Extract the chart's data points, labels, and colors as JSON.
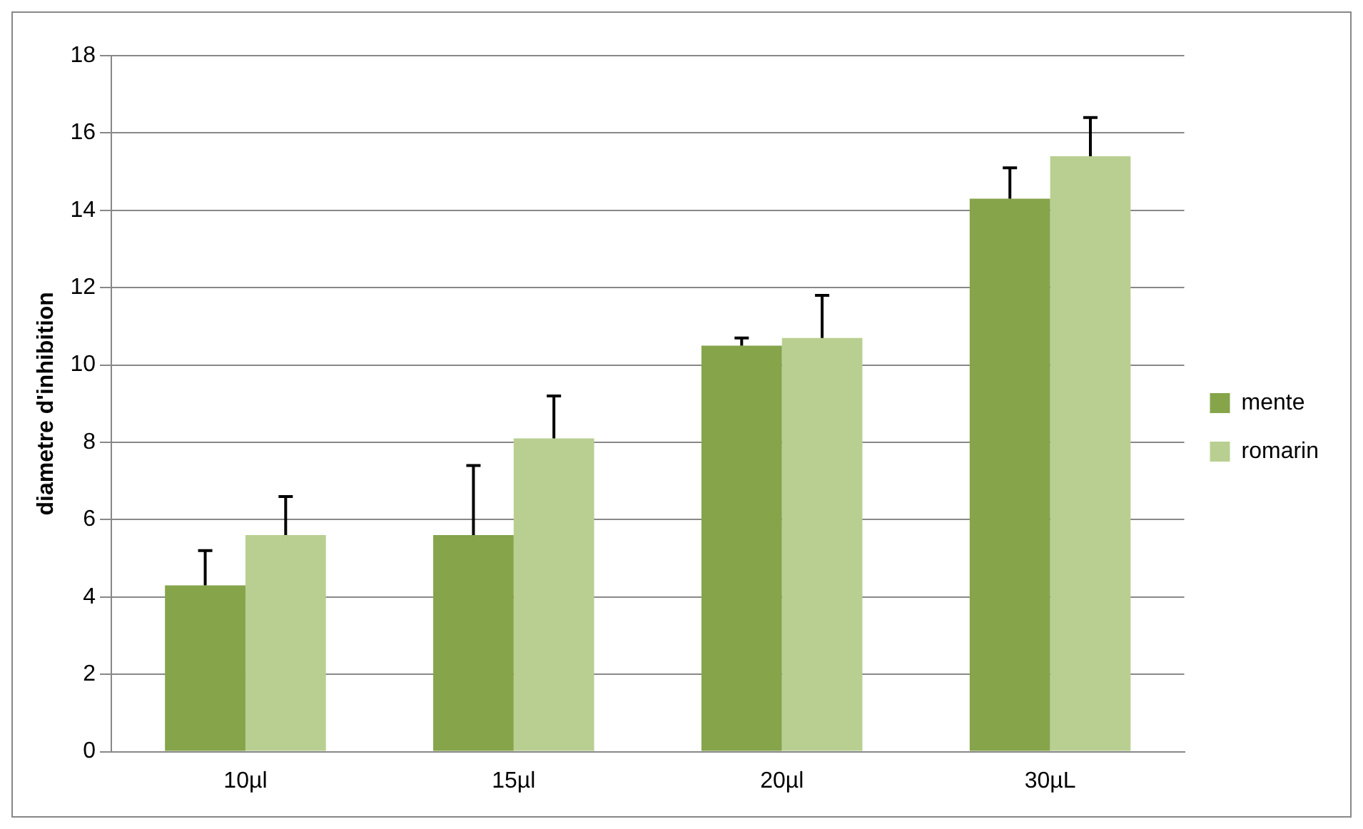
{
  "chart_data": {
    "type": "bar",
    "ylabel": "diametre d'inhibition",
    "categories": [
      "10µl",
      "15µl",
      "20µl",
      "30µL"
    ],
    "series": [
      {
        "name": "mente",
        "color": "#86a44a",
        "values": [
          4.3,
          5.6,
          10.5,
          14.3
        ],
        "errors": [
          [
            4.3,
            5.2
          ],
          [
            5.6,
            7.4
          ],
          [
            10.5,
            10.7
          ],
          [
            14.3,
            15.1
          ]
        ]
      },
      {
        "name": "romarin",
        "color": "#b8cf91",
        "values": [
          5.6,
          8.1,
          10.7,
          15.4
        ],
        "errors": [
          [
            5.6,
            6.6
          ],
          [
            8.1,
            9.2
          ],
          [
            10.7,
            11.8
          ],
          [
            15.4,
            16.4
          ]
        ]
      }
    ],
    "ylim": [
      0,
      18
    ],
    "yticks": [
      0,
      2,
      4,
      6,
      8,
      10,
      12,
      14,
      16,
      18
    ],
    "grid": "y",
    "legend": "right"
  }
}
